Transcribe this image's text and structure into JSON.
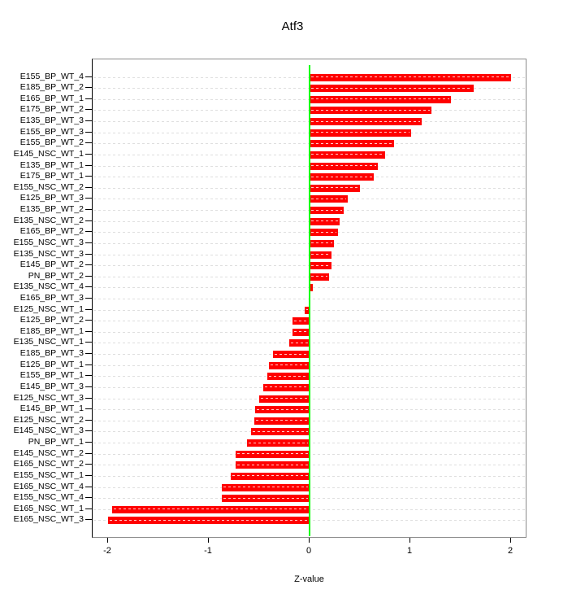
{
  "title": "Atf3",
  "axes": {
    "xlabel": "Z-value",
    "xtick_labels": [
      "-2",
      "-1",
      "0",
      "1",
      "2"
    ]
  },
  "colors": {
    "bar": "#ff0000",
    "zero_line": "#00ff00",
    "grid": "#dedede",
    "box": "#8c8c8c",
    "axis": "#000000",
    "background": "#ffffff"
  },
  "chart_data": {
    "type": "bar",
    "orientation": "horizontal",
    "title": "Atf3",
    "xlabel": "Z-value",
    "ylabel": "",
    "xlim": [
      -2.153,
      2.161
    ],
    "xticks": [
      -2,
      -1,
      0,
      1,
      2
    ],
    "grid": "dashed-horizontal-per-row",
    "legend": "none",
    "zero_reference_line": 0,
    "categories": [
      "E155_BP_WT_4",
      "E185_BP_WT_2",
      "E165_BP_WT_1",
      "E175_BP_WT_2",
      "E135_BP_WT_3",
      "E155_BP_WT_3",
      "E155_BP_WT_2",
      "E145_NSC_WT_1",
      "E135_BP_WT_1",
      "E175_BP_WT_1",
      "E155_NSC_WT_2",
      "E125_BP_WT_3",
      "E135_BP_WT_2",
      "E135_NSC_WT_2",
      "E165_BP_WT_2",
      "E155_NSC_WT_3",
      "E135_NSC_WT_3",
      "E145_BP_WT_2",
      "PN_BP_WT_2",
      "E135_NSC_WT_4",
      "E165_BP_WT_3",
      "E125_NSC_WT_1",
      "E125_BP_WT_2",
      "E185_BP_WT_1",
      "E135_NSC_WT_1",
      "E185_BP_WT_3",
      "E125_BP_WT_1",
      "E155_BP_WT_1",
      "E145_BP_WT_3",
      "E125_NSC_WT_3",
      "E145_BP_WT_1",
      "E125_NSC_WT_2",
      "E145_NSC_WT_3",
      "PN_BP_WT_1",
      "E145_NSC_WT_2",
      "E165_NSC_WT_2",
      "E155_NSC_WT_1",
      "E165_NSC_WT_4",
      "E155_NSC_WT_4",
      "E165_NSC_WT_1",
      "E165_NSC_WT_3"
    ],
    "values": [
      2.0,
      1.63,
      1.4,
      1.21,
      1.11,
      1.01,
      0.84,
      0.75,
      0.68,
      0.64,
      0.5,
      0.38,
      0.34,
      0.3,
      0.28,
      0.24,
      0.22,
      0.22,
      0.19,
      0.03,
      0.005,
      -0.05,
      -0.17,
      -0.17,
      -0.2,
      -0.36,
      -0.4,
      -0.42,
      -0.46,
      -0.5,
      -0.54,
      -0.55,
      -0.58,
      -0.62,
      -0.73,
      -0.73,
      -0.78,
      -0.87,
      -0.87,
      -1.96,
      -2.0
    ]
  }
}
